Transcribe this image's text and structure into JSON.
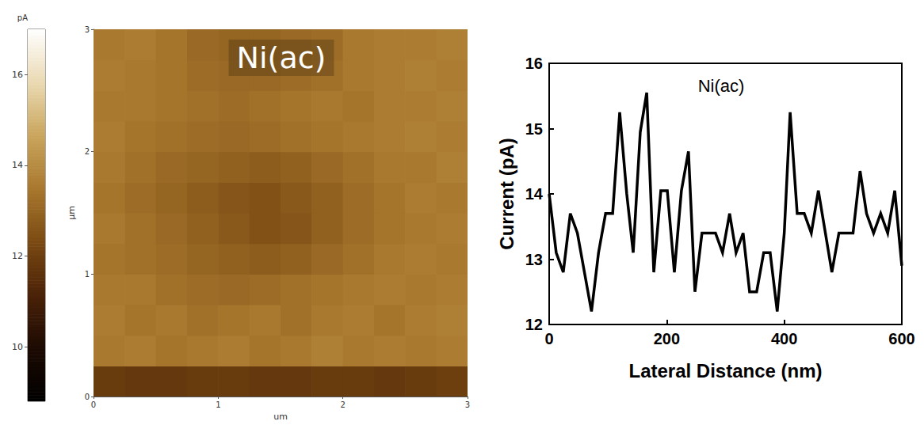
{
  "chart_data": [
    {
      "type": "heatmap",
      "title": "Ni(ac)",
      "x_label": "um",
      "y_label": "µm",
      "xlim": [
        0,
        3
      ],
      "ylim": [
        0,
        3
      ],
      "xticks": [
        0,
        1,
        2,
        3
      ],
      "yticks": [
        0,
        1,
        2,
        3
      ],
      "cells": [
        [
          11.9,
          11.8,
          11.8,
          11.9,
          11.9,
          11.8,
          11.8,
          11.9,
          11.9,
          11.8,
          11.9,
          12.0
        ],
        [
          13.5,
          13.6,
          13.4,
          13.5,
          13.6,
          13.4,
          13.5,
          13.7,
          13.5,
          13.6,
          13.5,
          13.6
        ],
        [
          13.6,
          13.4,
          13.5,
          13.3,
          13.4,
          13.5,
          13.3,
          13.5,
          13.6,
          13.4,
          13.6,
          13.7
        ],
        [
          13.5,
          13.5,
          13.3,
          13.2,
          13.1,
          13.2,
          13.3,
          13.4,
          13.5,
          13.6,
          13.5,
          13.6
        ],
        [
          13.4,
          13.3,
          13.2,
          13.0,
          12.9,
          12.8,
          12.9,
          13.1,
          13.3,
          13.5,
          13.6,
          13.5
        ],
        [
          13.5,
          13.3,
          13.1,
          12.9,
          12.7,
          12.5,
          12.6,
          12.9,
          13.2,
          13.4,
          13.5,
          13.6
        ],
        [
          13.4,
          13.2,
          13.0,
          12.8,
          12.6,
          12.5,
          12.7,
          12.9,
          13.2,
          13.4,
          13.6,
          13.5
        ],
        [
          13.5,
          13.3,
          13.1,
          13.0,
          12.9,
          12.8,
          12.9,
          13.1,
          13.3,
          13.5,
          13.5,
          13.7
        ],
        [
          13.6,
          13.4,
          13.3,
          13.2,
          13.1,
          13.2,
          13.3,
          13.4,
          13.5,
          13.6,
          13.7,
          13.6
        ],
        [
          13.5,
          13.5,
          13.4,
          13.3,
          13.2,
          13.3,
          13.4,
          13.5,
          13.4,
          13.6,
          13.6,
          13.7
        ],
        [
          13.6,
          13.5,
          13.4,
          13.2,
          13.1,
          13.1,
          13.2,
          13.3,
          13.5,
          13.6,
          13.7,
          13.6
        ],
        [
          13.5,
          13.6,
          13.4,
          13.1,
          13.0,
          13.0,
          13.1,
          13.2,
          13.5,
          13.6,
          13.6,
          13.7
        ]
      ],
      "colorbar": {
        "label": "pA",
        "range": [
          8.8,
          17
        ],
        "ticks": [
          10,
          12,
          14,
          16
        ]
      }
    },
    {
      "type": "line",
      "title": "Ni(ac)",
      "x_label": "Lateral Distance (nm)",
      "y_label": "Current (pA)",
      "x": [
        0,
        12,
        24,
        36,
        48,
        60,
        72,
        84,
        96,
        108,
        120,
        132,
        143,
        155,
        166,
        178,
        190,
        201,
        213,
        225,
        237,
        248,
        260,
        272,
        283,
        295,
        307,
        318,
        330,
        341,
        353,
        365,
        376,
        388,
        400,
        410,
        422,
        434,
        446,
        458,
        470,
        481,
        493,
        505,
        517,
        529,
        540,
        552,
        564,
        576,
        588,
        600
      ],
      "values": [
        14.0,
        13.1,
        12.8,
        13.7,
        13.4,
        12.8,
        12.2,
        13.1,
        13.7,
        13.7,
        15.25,
        14.0,
        13.1,
        14.95,
        15.55,
        12.8,
        14.05,
        14.05,
        12.8,
        14.05,
        14.65,
        12.5,
        13.4,
        13.4,
        13.4,
        13.1,
        13.7,
        13.1,
        13.4,
        12.5,
        12.5,
        13.1,
        13.1,
        12.2,
        13.4,
        15.25,
        13.7,
        13.7,
        13.4,
        14.05,
        13.4,
        12.8,
        13.4,
        13.4,
        13.4,
        14.35,
        13.7,
        13.4,
        13.7,
        13.4,
        14.05,
        12.9
      ],
      "color": "#000000",
      "xlim": [
        0,
        600
      ],
      "ylim": [
        12,
        16
      ],
      "xticks": [
        0,
        200,
        400,
        600
      ],
      "yticks": [
        12,
        13,
        14,
        15,
        16
      ]
    }
  ]
}
